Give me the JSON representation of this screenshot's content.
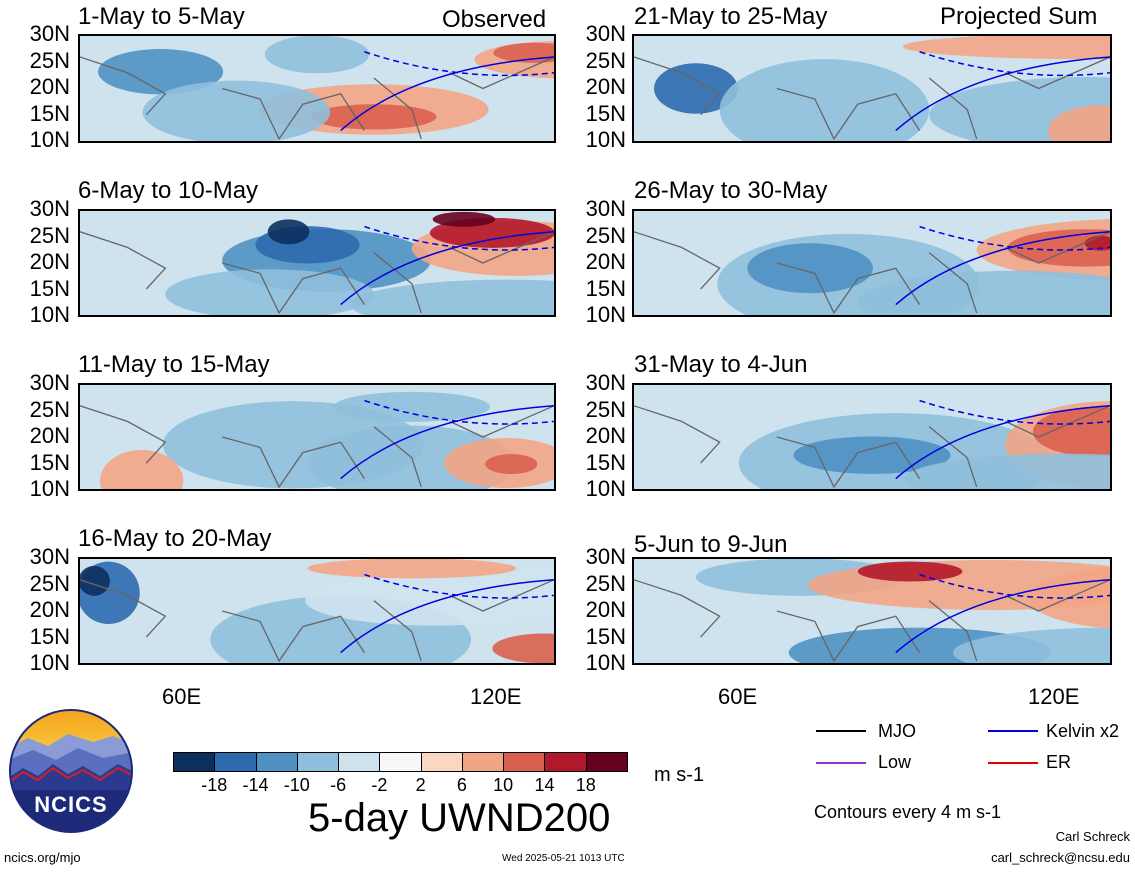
{
  "chart_data": {
    "type": "heatmap",
    "title": "5-day UWND200",
    "units": "m s-1",
    "contour_note": "Contours every 4 m s-1",
    "column_labels": [
      "Observed",
      "Projected Sum"
    ],
    "lat_ticks": [
      "30N",
      "25N",
      "20N",
      "15N",
      "10N"
    ],
    "lon_ticks": [
      "60E",
      "120E"
    ],
    "colorbar": {
      "ticks": [
        "-18",
        "-14",
        "-10",
        "-6",
        "-2",
        "2",
        "6",
        "10",
        "14",
        "18"
      ],
      "colors": [
        "#0d2f5e",
        "#2e6aae",
        "#4f91c3",
        "#8fbfdc",
        "#cfe3ef",
        "#f7f7f7",
        "#fbd6c2",
        "#f2a585",
        "#d9604f",
        "#b2182b",
        "#67001f"
      ]
    },
    "legend": [
      {
        "label": "MJO",
        "color": "#000000"
      },
      {
        "label": "Kelvin x2",
        "color": "#0000e0"
      },
      {
        "label": "Low",
        "color": "#9932cc"
      },
      {
        "label": "ER",
        "color": "#e00000"
      }
    ],
    "panels": [
      {
        "period": "1-May to 5-May",
        "column": "Observed"
      },
      {
        "period": "6-May to 10-May",
        "column": "Observed"
      },
      {
        "period": "11-May to 15-May",
        "column": "Observed"
      },
      {
        "period": "16-May to 20-May",
        "column": "Observed"
      },
      {
        "period": "21-May to 25-May",
        "column": "Projected Sum"
      },
      {
        "period": "26-May to 30-May",
        "column": "Projected Sum"
      },
      {
        "period": "31-May to 4-Jun",
        "column": "Projected Sum"
      },
      {
        "period": "5-Jun to 9-Jun",
        "column": "Projected Sum"
      }
    ]
  },
  "logo": {
    "text": "NCICS"
  },
  "footer": {
    "url": "ncics.org/mjo",
    "timestamp": "Wed 2025-05-21 1013 UTC",
    "author": "Carl Schreck",
    "email": "carl_schreck@ncsu.edu"
  }
}
